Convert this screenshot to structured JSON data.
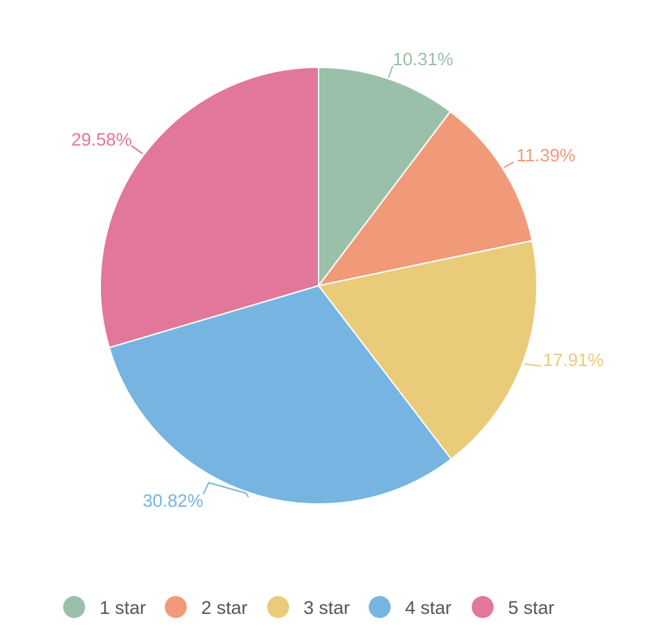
{
  "chart_data": {
    "type": "pie",
    "categories": [
      "1 star",
      "2 star",
      "3 star",
      "4 star",
      "5 star"
    ],
    "values": [
      10.31,
      11.39,
      17.91,
      30.82,
      29.58
    ],
    "labels": [
      "10.31%",
      "11.39%",
      "17.91%",
      "30.82%",
      "29.58%"
    ],
    "colors": [
      "#9bc0a9",
      "#f19a79",
      "#e9cb79",
      "#76b5e1",
      "#e27799"
    ],
    "start_angle": "top, clockwise",
    "legend_position": "bottom"
  }
}
